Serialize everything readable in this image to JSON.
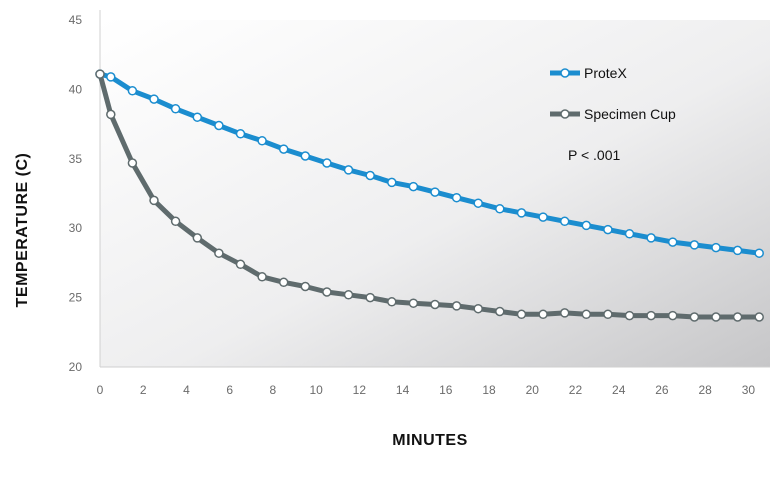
{
  "chart_data": {
    "type": "line",
    "xlabel": "MINUTES",
    "ylabel": "TEMPERATURE (C)",
    "xlim": [
      0,
      31
    ],
    "ylim": [
      20,
      45
    ],
    "x_ticks": [
      "0",
      "2",
      "4",
      "6",
      "8",
      "10",
      "12",
      "14",
      "16",
      "18",
      "20",
      "22",
      "24",
      "26",
      "28",
      "30"
    ],
    "y_ticks": [
      "20",
      "25",
      "30",
      "35",
      "40",
      "45"
    ],
    "annotation": "P < .001",
    "legend_position": "top-right",
    "grid": false,
    "series": [
      {
        "name": "ProteX",
        "color": "#1b8dcf",
        "x": [
          0,
          0.5,
          1.5,
          2.5,
          3.5,
          4.5,
          5.5,
          6.5,
          7.5,
          8.5,
          9.5,
          10.5,
          11.5,
          12.5,
          13.5,
          14.5,
          15.5,
          16.5,
          17.5,
          18.5,
          19.5,
          20.5,
          21.5,
          22.5,
          23.5,
          24.5,
          25.5,
          26.5,
          27.5,
          28.5,
          29.5,
          30.5
        ],
        "values": [
          41.1,
          40.9,
          39.9,
          39.3,
          38.6,
          38.0,
          37.4,
          36.8,
          36.3,
          35.7,
          35.2,
          34.7,
          34.2,
          33.8,
          33.3,
          33.0,
          32.6,
          32.2,
          31.8,
          31.4,
          31.1,
          30.8,
          30.5,
          30.2,
          29.9,
          29.6,
          29.3,
          29.0,
          28.8,
          28.6,
          28.4,
          28.2
        ]
      },
      {
        "name": "Specimen Cup",
        "color": "#5f6b6d",
        "x": [
          0,
          0.5,
          1.5,
          2.5,
          3.5,
          4.5,
          5.5,
          6.5,
          7.5,
          8.5,
          9.5,
          10.5,
          11.5,
          12.5,
          13.5,
          14.5,
          15.5,
          16.5,
          17.5,
          18.5,
          19.5,
          20.5,
          21.5,
          22.5,
          23.5,
          24.5,
          25.5,
          26.5,
          27.5,
          28.5,
          29.5,
          30.5
        ],
        "values": [
          41.1,
          38.2,
          34.7,
          32.0,
          30.5,
          29.3,
          28.2,
          27.4,
          26.5,
          26.1,
          25.8,
          25.4,
          25.2,
          25.0,
          24.7,
          24.6,
          24.5,
          24.4,
          24.2,
          24.0,
          23.8,
          23.8,
          23.9,
          23.8,
          23.8,
          23.7,
          23.7,
          23.7,
          23.6,
          23.6,
          23.6,
          23.6
        ]
      }
    ]
  }
}
